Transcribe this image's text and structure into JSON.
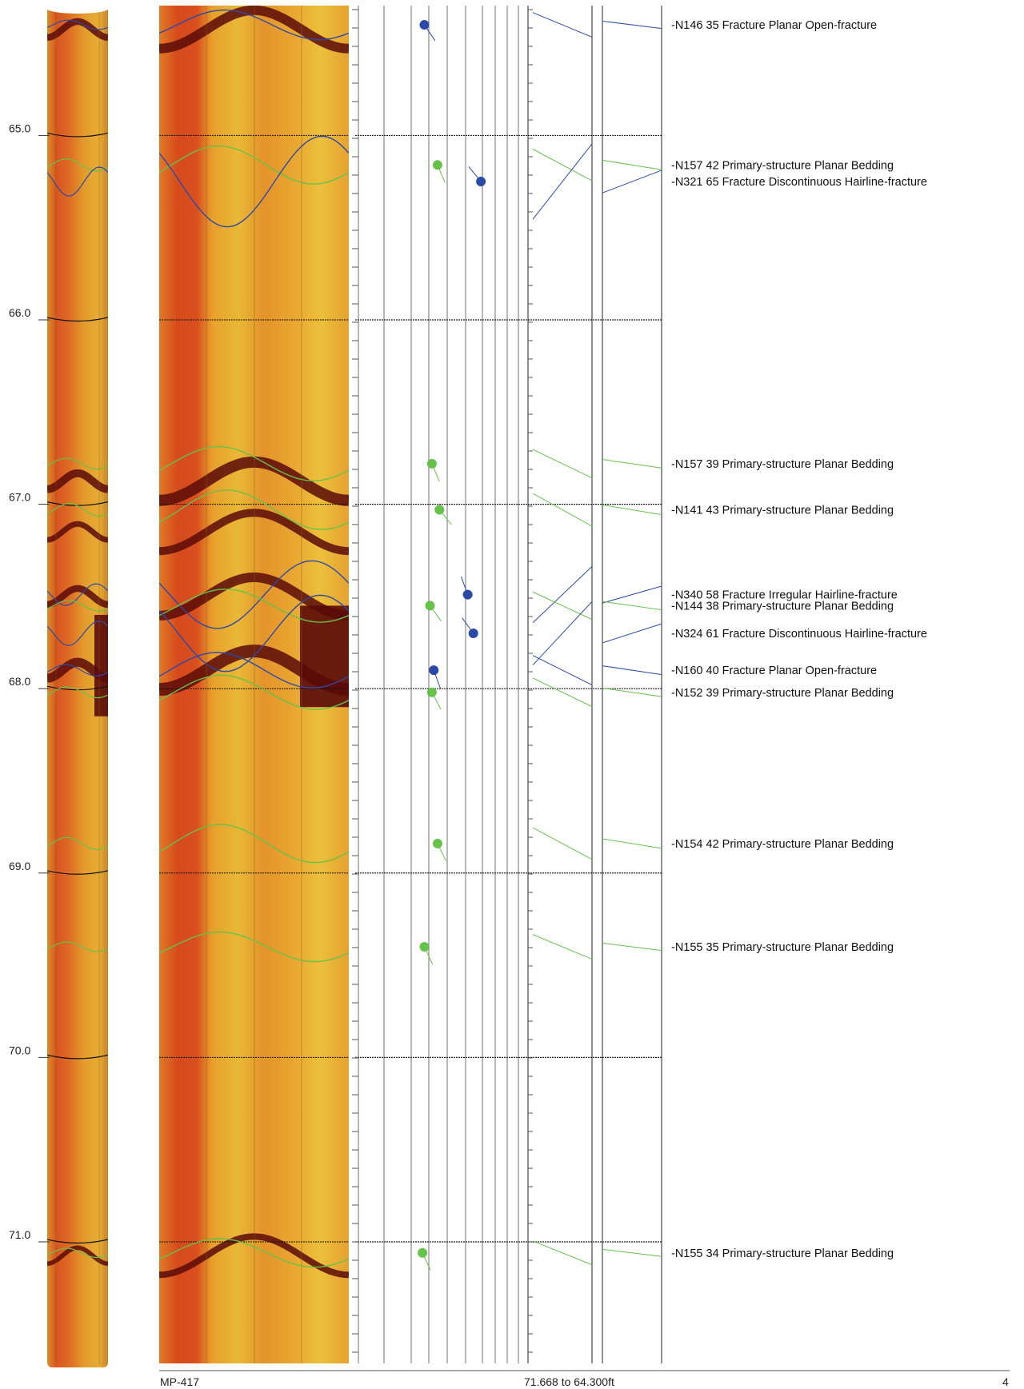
{
  "log_header": {
    "well": "MP-417",
    "interval": "71.668 to 64.300ft",
    "page": "4"
  },
  "colors": {
    "fracture": "#2b4aa8",
    "bedding": "#66c24a",
    "image_dark": "#5a0a08",
    "image_mid": "#cf4a1e",
    "image_light": "#e8a830"
  },
  "depth_axis": {
    "top": 64.3,
    "bottom": 71.668,
    "labels": [
      "65.0",
      "66.0",
      "67.0",
      "68.0",
      "69.0",
      "70.0",
      "71.0"
    ]
  },
  "features": [
    {
      "depth": 64.4,
      "azimuth": 146,
      "dip": 35,
      "kind": "fracture",
      "text": "N146 35 Fracture Planar Open-fracture"
    },
    {
      "depth": 65.16,
      "azimuth": 157,
      "dip": 42,
      "kind": "bedding",
      "text": "N157 42 Primary-structure Planar Bedding"
    },
    {
      "depth": 65.25,
      "azimuth": 321,
      "dip": 65,
      "kind": "fracture",
      "text": "N321 65 Fracture Discontinuous Hairline-fracture"
    },
    {
      "depth": 66.78,
      "azimuth": 157,
      "dip": 39,
      "kind": "bedding",
      "text": "N157 39 Primary-structure Planar Bedding"
    },
    {
      "depth": 67.03,
      "azimuth": 141,
      "dip": 43,
      "kind": "bedding",
      "text": "N141 43 Primary-structure Planar Bedding"
    },
    {
      "depth": 67.49,
      "azimuth": 340,
      "dip": 58,
      "kind": "fracture",
      "text": "N340 58 Fracture Irregular Hairline-fracture"
    },
    {
      "depth": 67.55,
      "azimuth": 144,
      "dip": 38,
      "kind": "bedding",
      "text": "N144 38 Primary-structure Planar Bedding"
    },
    {
      "depth": 67.7,
      "azimuth": 324,
      "dip": 61,
      "kind": "fracture",
      "text": "N324 61 Fracture Discontinuous Hairline-fracture"
    },
    {
      "depth": 67.9,
      "azimuth": 160,
      "dip": 40,
      "kind": "fracture",
      "text": "N160 40 Fracture Planar Open-fracture"
    },
    {
      "depth": 68.02,
      "azimuth": 152,
      "dip": 39,
      "kind": "bedding",
      "text": "N152 39 Primary-structure Planar Bedding"
    },
    {
      "depth": 68.84,
      "azimuth": 154,
      "dip": 42,
      "kind": "bedding",
      "text": "N154 42 Primary-structure Planar Bedding"
    },
    {
      "depth": 69.4,
      "azimuth": 155,
      "dip": 35,
      "kind": "bedding",
      "text": "N155 35 Primary-structure Planar Bedding"
    },
    {
      "depth": 71.06,
      "azimuth": 155,
      "dip": 34,
      "kind": "bedding",
      "text": "N155 34 Primary-structure Planar Bedding"
    }
  ]
}
